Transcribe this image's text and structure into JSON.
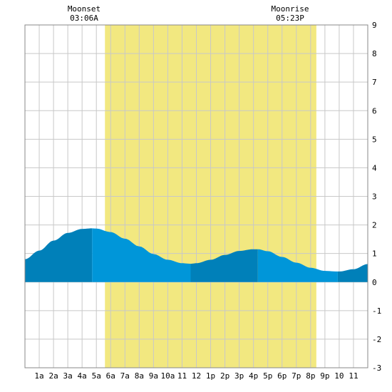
{
  "moon": {
    "moonset_label": "Moonset",
    "moonset_time": "03:06A",
    "moonrise_label": "Moonrise",
    "moonrise_time": "05:23P"
  },
  "chart_data": {
    "type": "area",
    "title": "",
    "xlabel": "",
    "ylabel": "",
    "xlim": [
      0,
      24
    ],
    "ylim": [
      -3,
      9
    ],
    "x_tick_labels": [
      "1a",
      "2a",
      "3a",
      "4a",
      "5a",
      "6a",
      "7a",
      "8a",
      "9a",
      "10a",
      "11",
      "12",
      "1p",
      "2p",
      "3p",
      "4p",
      "5p",
      "6p",
      "7p",
      "8p",
      "9p",
      "10",
      "11"
    ],
    "y_tick_labels": [
      "-3",
      "-2",
      "-1",
      "0",
      "1",
      "2",
      "3",
      "4",
      "5",
      "6",
      "7",
      "8",
      "9"
    ],
    "grid": true,
    "daylight_band": {
      "start_hour": 5.6,
      "end_hour": 20.4,
      "color": "#f2e880"
    },
    "moonset_hour": 3.1,
    "moonrise_hour": 17.38,
    "series": [
      {
        "x": [
          0,
          1,
          2,
          3,
          4,
          4.7,
          5,
          6,
          7,
          8,
          9,
          10,
          11,
          11.6,
          12,
          13,
          14,
          15,
          16,
          16.3,
          17,
          18,
          19,
          20,
          21,
          21.9,
          22,
          23,
          24
        ],
        "y": [
          0.8,
          1.1,
          1.45,
          1.72,
          1.86,
          1.88,
          1.87,
          1.75,
          1.52,
          1.25,
          0.98,
          0.78,
          0.66,
          0.64,
          0.66,
          0.78,
          0.95,
          1.09,
          1.15,
          1.15,
          1.08,
          0.88,
          0.68,
          0.5,
          0.39,
          0.37,
          0.37,
          0.45,
          0.63
        ]
      }
    ],
    "segment_boundaries_hours": [
      0,
      4.7,
      11.6,
      16.3,
      21.9,
      24
    ],
    "colors": {
      "fill_dark": "#0080b9",
      "fill_light": "#0096d9",
      "grid": "#c8c8c8",
      "axis": "#000000"
    }
  }
}
